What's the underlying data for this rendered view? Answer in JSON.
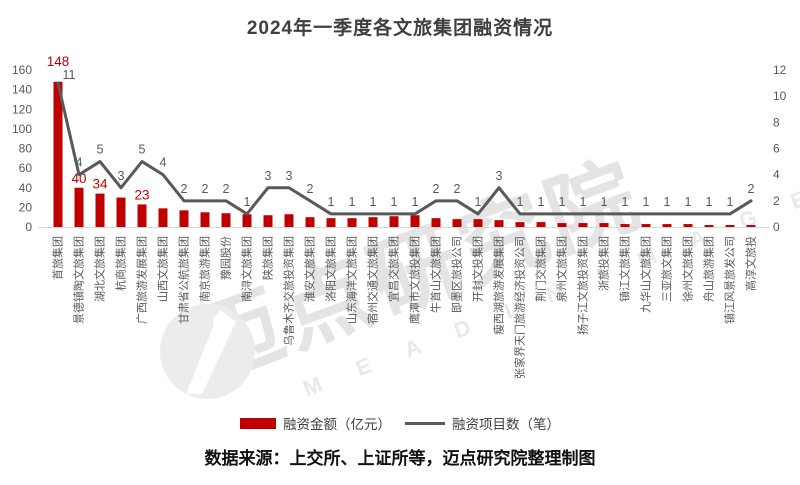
{
  "title": "2024年一季度各文旅集团融资情况",
  "source_note": "数据来源：上交所、上证所等，迈点研究院整理制图",
  "watermark": {
    "text": "迈点研究院",
    "letters": "M E A D I N I M A G E",
    "logo": "meadin-logo"
  },
  "legend": [
    {
      "label": "融资金额（亿元）",
      "type": "bar",
      "color": "#c00000"
    },
    {
      "label": "融资项目数（笔）",
      "type": "line",
      "color": "#595959"
    }
  ],
  "chart_data": {
    "type": "bar",
    "subtype": "bar+line combo, dual axis",
    "title": "2024年一季度各文旅集团融资情况",
    "grid": false,
    "legend_position": "bottom",
    "categories": [
      "首旅集团",
      "景德镇陶文旅集团",
      "湖北文旅集团",
      "杭商旅集团",
      "广西旅游发展集团",
      "山西文旅集团",
      "甘肃省公航旅集团",
      "南京旅游集团",
      "豫园股份",
      "南浔文旅集团",
      "陕旅集团",
      "乌鲁木齐交旅投资集团",
      "淮安文旅集团",
      "洛阳文旅集团",
      "山东海洋文旅集团",
      "宿州交通文旅集团",
      "宜昌交旅集团",
      "鹰潭市文旅投集团",
      "牛首山文旅集团",
      "即墨区旅投公司",
      "开封文投集团",
      "瘦西湖旅游发展集团",
      "张家界天门旅游经济投资公司",
      "荆门交旅集团",
      "泉州文旅集团",
      "扬子江文旅投资集团",
      "浙旅投集团",
      "镇江文旅集团",
      "九华山文旅集团",
      "三亚旅文集团",
      "徐州文旅集团",
      "舟山旅游集团",
      "镇江风景旅发公司",
      "高淳文旅投"
    ],
    "series": [
      {
        "name": "融资金额（亿元）",
        "type": "bar",
        "axis": "left",
        "color": "#c00000",
        "values": [
          148,
          40,
          34,
          30,
          23,
          19,
          17,
          15,
          14,
          13,
          12,
          13,
          10,
          9,
          9,
          10,
          11,
          12,
          9,
          8,
          8,
          7,
          5,
          5,
          4,
          4,
          4,
          3,
          3,
          3,
          3,
          2,
          2,
          2
        ],
        "shown_labels": {
          "0": "148",
          "1": "40",
          "2": "34",
          "4": "23"
        }
      },
      {
        "name": "融资项目数（笔）",
        "type": "line",
        "axis": "right",
        "color": "#595959",
        "values": [
          11,
          4,
          5,
          3,
          5,
          4,
          2,
          2,
          2,
          1,
          3,
          3,
          2,
          1,
          1,
          1,
          1,
          1,
          2,
          2,
          1,
          3,
          1,
          1,
          1,
          1,
          1,
          1,
          1,
          1,
          1,
          1,
          1,
          2
        ],
        "labels_shown": true
      }
    ],
    "left_axis": {
      "min": 0,
      "max": 160,
      "step": 20,
      "ticks": [
        "0",
        "20",
        "40",
        "60",
        "80",
        "100",
        "120",
        "140",
        "160"
      ]
    },
    "right_axis": {
      "min": 0,
      "max": 12,
      "step": 2,
      "ticks": [
        "0",
        "2",
        "4",
        "6",
        "8",
        "10",
        "12"
      ]
    }
  }
}
